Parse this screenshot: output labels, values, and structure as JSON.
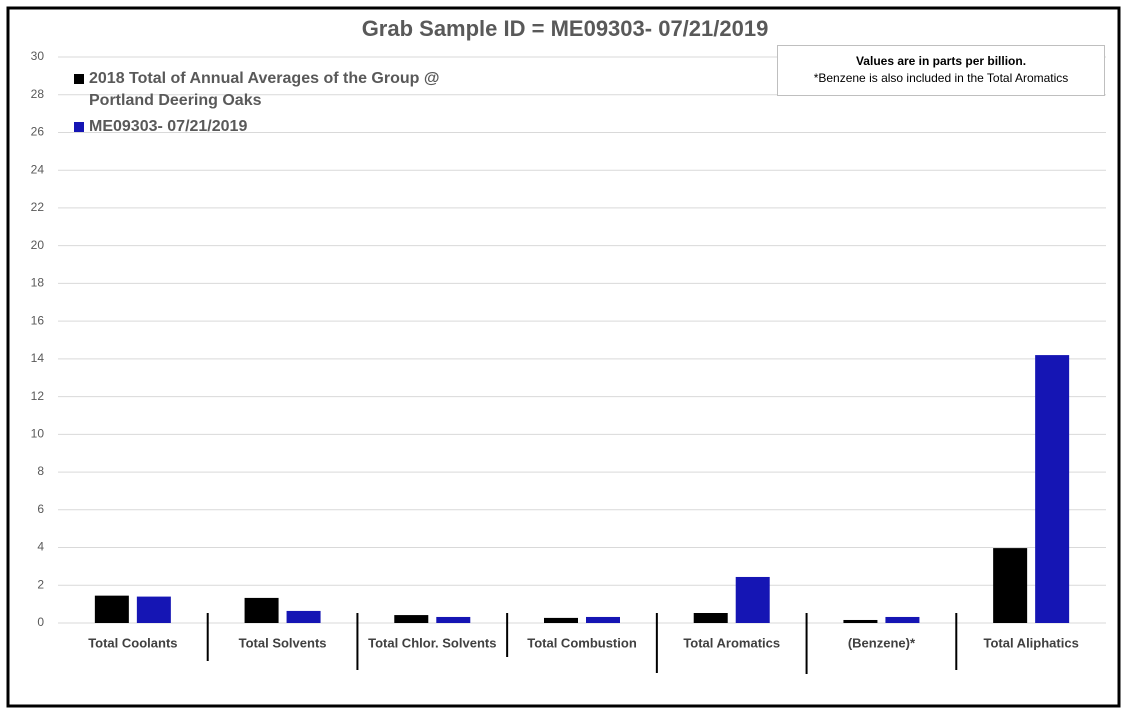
{
  "chart_data": {
    "type": "bar",
    "title": "Grab Sample ID = ME09303- 07/21/2019",
    "annotations": [
      "Values are in parts per billion.",
      "*Benzene is also included in the Total Aromatics"
    ],
    "categories": [
      "Total Coolants",
      "Total Solvents",
      "Total Chlor. Solvents",
      "Total Combustion",
      "Total Aromatics",
      "(Benzene)*",
      "Total Aliphatics"
    ],
    "series": [
      {
        "name": "2018 Total of Annual Averages of the Group @ Portland Deering Oaks",
        "color": "#000000",
        "values": [
          1.45,
          1.33,
          0.42,
          0.27,
          0.53,
          0.16,
          3.97
        ]
      },
      {
        "name": "ME09303- 07/21/2019",
        "color": "#1515b4",
        "values": [
          1.4,
          0.64,
          0.32,
          0.32,
          2.44,
          0.32,
          14.2
        ]
      }
    ],
    "ylim": [
      0,
      30
    ],
    "yticks": [
      0,
      2,
      4,
      6,
      8,
      10,
      12,
      14,
      16,
      18,
      20,
      22,
      24,
      26,
      28,
      30
    ],
    "grid": true,
    "legend": "top-left"
  }
}
